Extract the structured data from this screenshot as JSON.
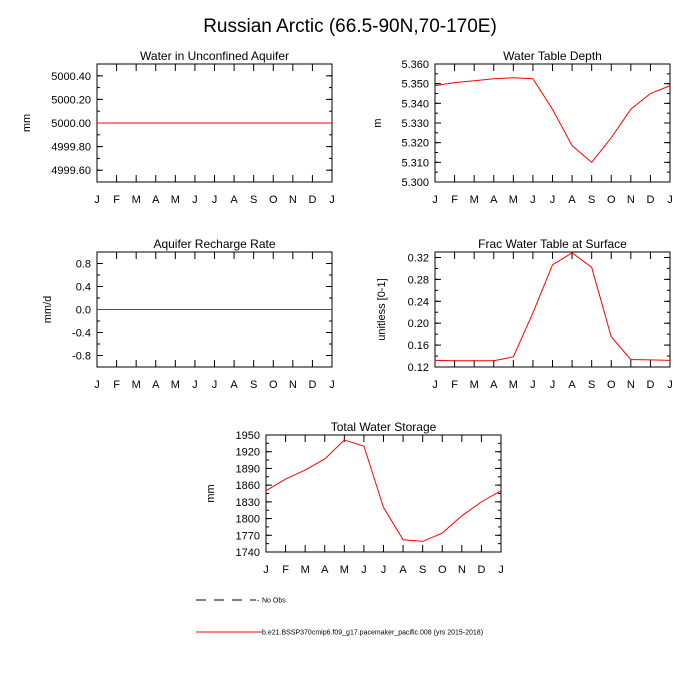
{
  "figure": {
    "title": "Russian Arctic (66.5-90N,70-170E)"
  },
  "colors": {
    "model_line": "#ff0000",
    "obs_line": "#000000",
    "axes": "#000000"
  },
  "legend": {
    "obs_label": "No Obs",
    "model_label": "b.e21.BSSP370cmip6.f09_g17.pacemaker_pacific.008 (yrs 2015-2018)"
  },
  "chart_data": [
    {
      "id": "water-unconfined-aquifer",
      "type": "line",
      "title": "Water in Unconfined Aquifer",
      "xlabel": "",
      "ylabel": "mm",
      "categories": [
        "J",
        "F",
        "M",
        "A",
        "M",
        "J",
        "J",
        "A",
        "S",
        "O",
        "N",
        "D",
        "J"
      ],
      "ylim": [
        4999.5,
        5000.5
      ],
      "yticks": [
        4999.6,
        4999.8,
        5000.0,
        5000.2,
        5000.4
      ],
      "ytick_labels": [
        "4999.60",
        "4999.80",
        "5000.00",
        "5000.20",
        "5000.40"
      ],
      "series": [
        {
          "values": [
            5000,
            5000,
            5000,
            5000,
            5000,
            5000,
            5000,
            5000,
            5000,
            5000,
            5000,
            5000,
            5000
          ]
        }
      ],
      "grid": false
    },
    {
      "id": "water-table-depth",
      "type": "line",
      "title": "Water Table Depth",
      "xlabel": "",
      "ylabel": "m",
      "categories": [
        "J",
        "F",
        "M",
        "A",
        "M",
        "J",
        "J",
        "A",
        "S",
        "O",
        "N",
        "D",
        "J"
      ],
      "ylim": [
        5.3,
        5.36
      ],
      "yticks": [
        5.3,
        5.31,
        5.32,
        5.33,
        5.34,
        5.35,
        5.36
      ],
      "ytick_labels": [
        "5.300",
        "5.310",
        "5.320",
        "5.330",
        "5.340",
        "5.350",
        "5.360"
      ],
      "series": [
        {
          "values": [
            5.349,
            5.3505,
            5.3515,
            5.3525,
            5.353,
            5.3525,
            5.337,
            5.3185,
            5.31,
            5.3225,
            5.337,
            5.345,
            5.349
          ]
        }
      ],
      "grid": false
    },
    {
      "id": "aquifer-recharge-rate",
      "type": "line",
      "title": "Aquifer Recharge Rate",
      "xlabel": "",
      "ylabel": "mm/d",
      "categories": [
        "J",
        "F",
        "M",
        "A",
        "M",
        "J",
        "J",
        "A",
        "S",
        "O",
        "N",
        "D",
        "J"
      ],
      "ylim": [
        -1.0,
        1.0
      ],
      "yticks": [
        -0.8,
        -0.4,
        0.0,
        0.4,
        0.8
      ],
      "ytick_labels": [
        "-0.8",
        "-0.4",
        "0.0",
        "0.4",
        "0.8"
      ],
      "series": [
        {
          "values": [
            0,
            0,
            0,
            0,
            0,
            0,
            0,
            0,
            0,
            0,
            0,
            0,
            0
          ]
        }
      ],
      "grid": false
    },
    {
      "id": "frac-water-table-surface",
      "type": "line",
      "title": "Frac Water Table at Surface",
      "xlabel": "",
      "ylabel": "unitless [0-1]",
      "categories": [
        "J",
        "F",
        "M",
        "A",
        "M",
        "J",
        "J",
        "A",
        "S",
        "O",
        "N",
        "D",
        "J"
      ],
      "ylim": [
        0.12,
        0.33
      ],
      "yticks": [
        0.12,
        0.16,
        0.2,
        0.24,
        0.28,
        0.32
      ],
      "ytick_labels": [
        "0.12",
        "0.16",
        "0.20",
        "0.24",
        "0.28",
        "0.32"
      ],
      "series": [
        {
          "values": [
            0.132,
            0.1315,
            0.1315,
            0.1315,
            0.1385,
            0.219,
            0.3065,
            0.3285,
            0.302,
            0.175,
            0.1335,
            0.133,
            0.132
          ]
        }
      ],
      "grid": false
    },
    {
      "id": "total-water-storage",
      "type": "line",
      "title": "Total Water Storage",
      "xlabel": "",
      "ylabel": "mm",
      "categories": [
        "J",
        "F",
        "M",
        "A",
        "M",
        "J",
        "J",
        "A",
        "S",
        "O",
        "N",
        "D",
        "J"
      ],
      "ylim": [
        1740,
        1950
      ],
      "yticks": [
        1740,
        1770,
        1800,
        1830,
        1860,
        1890,
        1920,
        1950
      ],
      "ytick_labels": [
        "1740",
        "1770",
        "1800",
        "1830",
        "1860",
        "1890",
        "1920",
        "1950"
      ],
      "series": [
        {
          "values": [
            1850,
            1871,
            1887,
            1907,
            1941,
            1930,
            1820,
            1762,
            1759,
            1774,
            1805,
            1830,
            1850
          ]
        }
      ],
      "grid": false
    }
  ]
}
